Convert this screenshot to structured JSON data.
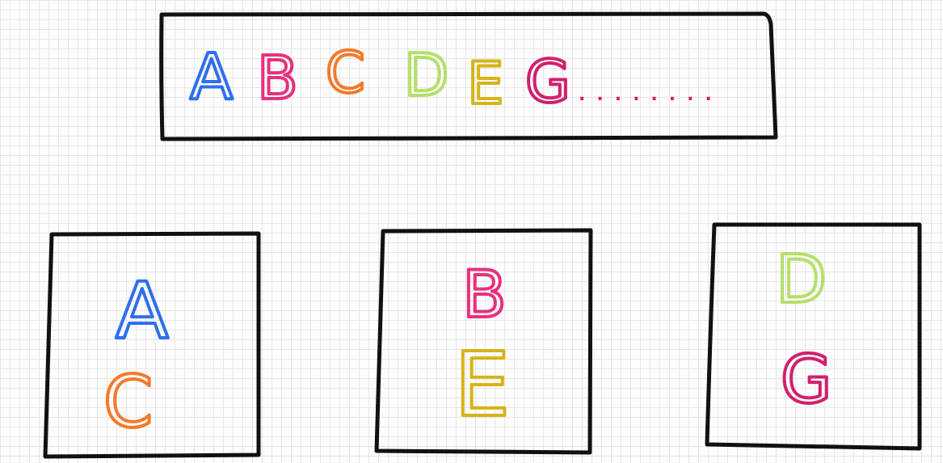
{
  "colors": {
    "A": "#2f6fef",
    "B": "#e8307c",
    "C": "#f47a2c",
    "D": "#b5e06a",
    "E": "#d7b417",
    "G": "#d21f6e",
    "dots": "#d21f6e",
    "box_stroke": "#111111"
  },
  "sequence": {
    "letters": [
      "A",
      "B",
      "C",
      "D",
      "E",
      "G"
    ],
    "dots": "........"
  },
  "groups": [
    {
      "letters": [
        "A",
        "C"
      ]
    },
    {
      "letters": [
        "B",
        "E"
      ]
    },
    {
      "letters": [
        "D",
        "G"
      ]
    }
  ]
}
